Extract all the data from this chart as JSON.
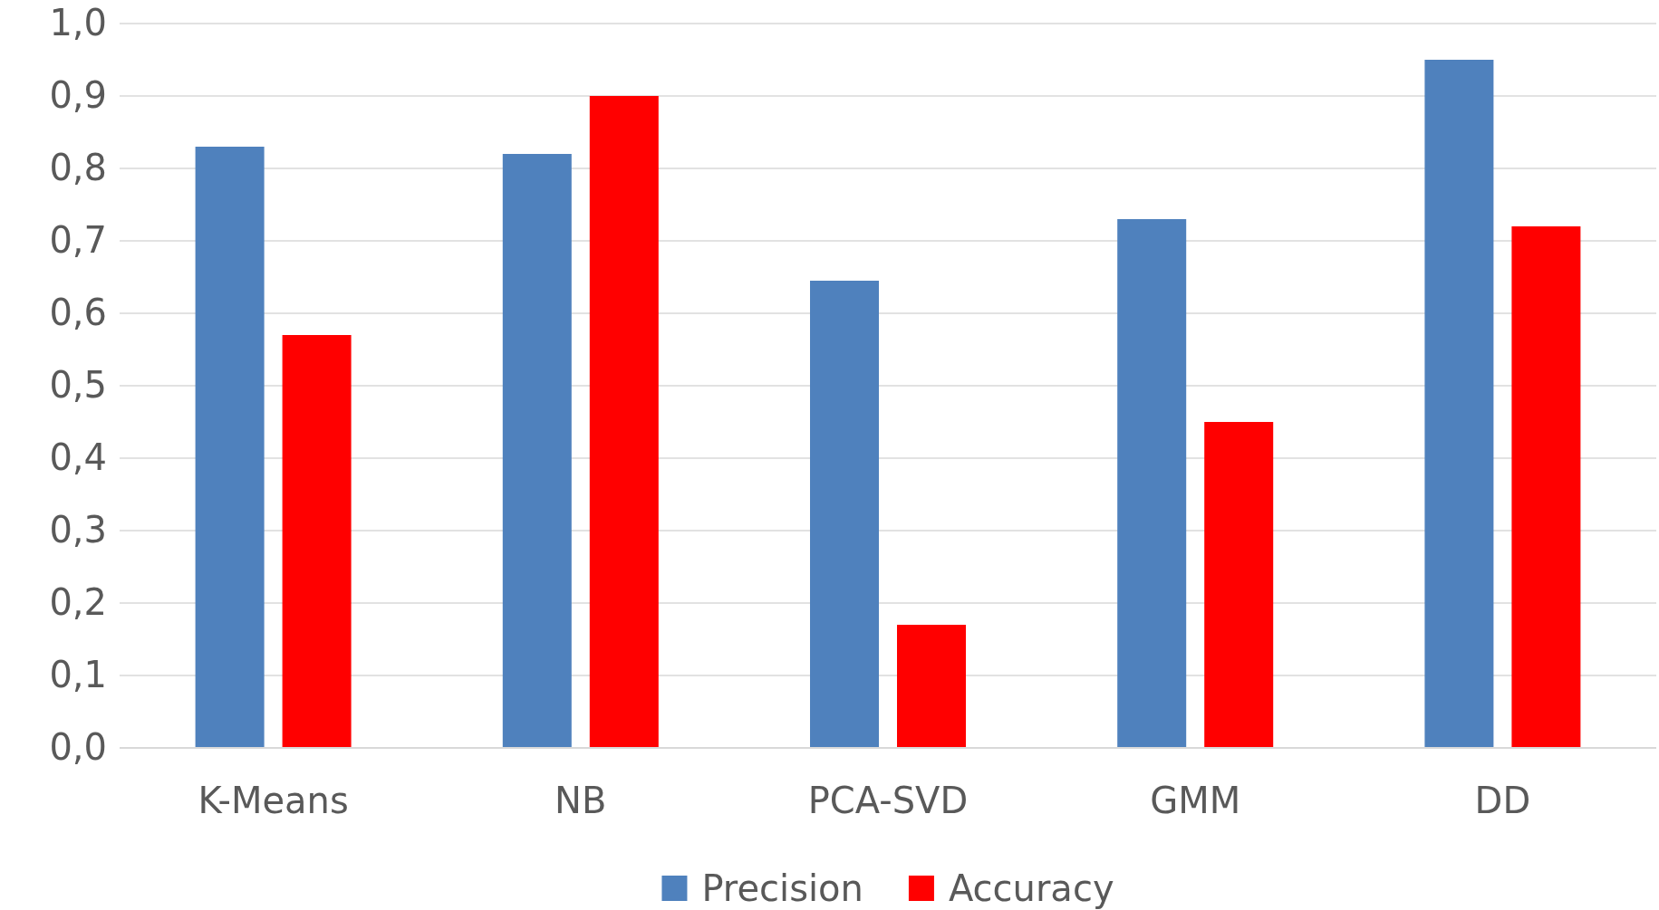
{
  "chart_data": {
    "type": "bar",
    "categories": [
      "K-Means",
      "NB",
      "PCA-SVD",
      "GMM",
      "DD"
    ],
    "series": [
      {
        "name": "Precision",
        "color": "#4f81bd",
        "values": [
          0.83,
          0.82,
          0.645,
          0.73,
          0.95
        ]
      },
      {
        "name": "Accuracy",
        "color": "#ff0000",
        "values": [
          0.57,
          0.9,
          0.17,
          0.45,
          0.72
        ]
      }
    ],
    "ylim": [
      0,
      1
    ],
    "yticks": [
      {
        "value": 0,
        "label": "0,0"
      },
      {
        "value": 0.1,
        "label": "0,1"
      },
      {
        "value": 0.2,
        "label": "0,2"
      },
      {
        "value": 0.3,
        "label": "0,3"
      },
      {
        "value": 0.4,
        "label": "0,4"
      },
      {
        "value": 0.5,
        "label": "0,5"
      },
      {
        "value": 0.6,
        "label": "0,6"
      },
      {
        "value": 0.7,
        "label": "0,7"
      },
      {
        "value": 0.8,
        "label": "0,8"
      },
      {
        "value": 0.9,
        "label": "0,9"
      },
      {
        "value": 1,
        "label": "1,0"
      }
    ],
    "grid": "y",
    "legend": "bottom"
  }
}
